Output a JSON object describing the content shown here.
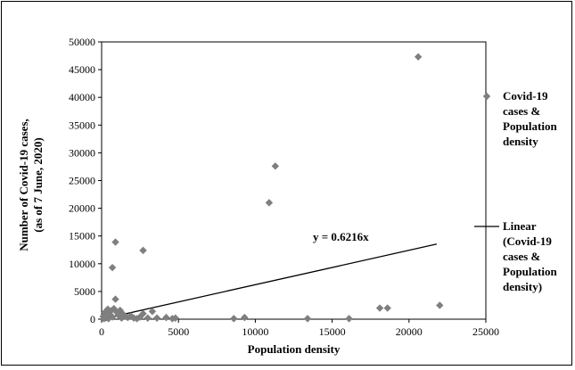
{
  "chart_data": {
    "type": "scatter",
    "title": "",
    "xlabel": "Population density",
    "ylabel_lines": [
      "Number of Covid-19 cases,",
      "(as of 7 June, 2020)"
    ],
    "xlim": [
      0,
      25000
    ],
    "ylim": [
      0,
      50000
    ],
    "x_ticks": [
      0,
      5000,
      10000,
      15000,
      20000,
      25000
    ],
    "y_ticks": [
      0,
      5000,
      10000,
      15000,
      20000,
      25000,
      30000,
      35000,
      40000,
      45000,
      50000
    ],
    "grid": false,
    "legend_position": "right",
    "series": [
      {
        "name_lines": [
          "Covid-19",
          "cases &",
          "Population",
          "density"
        ],
        "marker": "diamond",
        "color": "#7f7f7f",
        "points": [
          [
            20600,
            47300
          ],
          [
            11300,
            27600
          ],
          [
            10900,
            21000
          ],
          [
            2700,
            12400
          ],
          [
            900,
            13900
          ],
          [
            700,
            9300
          ],
          [
            900,
            3600
          ],
          [
            100,
            500
          ],
          [
            200,
            1200
          ],
          [
            300,
            300
          ],
          [
            400,
            1800
          ],
          [
            500,
            900
          ],
          [
            600,
            1500
          ],
          [
            700,
            400
          ],
          [
            800,
            1900
          ],
          [
            1000,
            1200
          ],
          [
            1100,
            700
          ],
          [
            1200,
            1600
          ],
          [
            1300,
            200
          ],
          [
            1400,
            900
          ],
          [
            1500,
            500
          ],
          [
            1700,
            300
          ],
          [
            1900,
            600
          ],
          [
            2100,
            200
          ],
          [
            2300,
            100
          ],
          [
            2500,
            400
          ],
          [
            2700,
            1000
          ],
          [
            3000,
            200
          ],
          [
            3300,
            1400
          ],
          [
            3600,
            200
          ],
          [
            4200,
            300
          ],
          [
            4600,
            100
          ],
          [
            4800,
            200
          ],
          [
            8600,
            100
          ],
          [
            9300,
            300
          ],
          [
            13400,
            100
          ],
          [
            16100,
            100
          ],
          [
            18100,
            2000
          ],
          [
            18600,
            2000
          ],
          [
            22000,
            2500
          ],
          [
            150,
            100
          ],
          [
            250,
            200
          ],
          [
            350,
            700
          ],
          [
            450,
            100
          ]
        ]
      }
    ],
    "trendline": {
      "name_lines": [
        "Linear",
        "(Covid-19",
        "cases &",
        "Population",
        "density)"
      ],
      "equation": "y = 0.6216x",
      "slope": 0.6216,
      "x_range": [
        0,
        21800
      ],
      "color": "#000000"
    }
  }
}
